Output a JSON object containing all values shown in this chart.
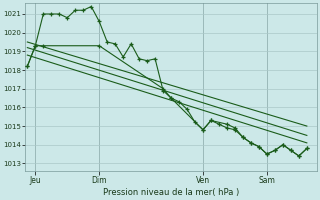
{
  "background_color": "#cce8e8",
  "grid_color": "#aac8c8",
  "line_color": "#1a5c1a",
  "title": "Pression niveau de la mer( hPa )",
  "ylabel_ticks": [
    1013,
    1014,
    1015,
    1016,
    1017,
    1018,
    1019,
    1020,
    1021
  ],
  "ylim": [
    1012.6,
    1021.6
  ],
  "xlim": [
    -0.3,
    36.3
  ],
  "day_labels": [
    "Jeu",
    "Dim",
    "Ven",
    "Sam"
  ],
  "day_positions": [
    1,
    9,
    22,
    30
  ],
  "series1_x": [
    0,
    1,
    2,
    3,
    4,
    5,
    6,
    7,
    8,
    9,
    10,
    11,
    12,
    13,
    14,
    15,
    16,
    17,
    18,
    19,
    20,
    21,
    22,
    23,
    24,
    25,
    26,
    27,
    28,
    29,
    30,
    31,
    32,
    33,
    34,
    35
  ],
  "series1_y": [
    1018.2,
    1019.3,
    1021.0,
    1021.0,
    1021.0,
    1020.8,
    1021.2,
    1021.2,
    1021.4,
    1020.6,
    1019.5,
    1019.4,
    1018.7,
    1019.4,
    1018.6,
    1018.5,
    1018.6,
    1016.9,
    1016.5,
    1016.3,
    1015.9,
    1015.2,
    1014.8,
    1015.3,
    1015.1,
    1014.9,
    1014.8,
    1014.4,
    1014.1,
    1013.9,
    1013.5,
    1013.7,
    1014.0,
    1013.7,
    1013.4,
    1013.8
  ],
  "series2_x": [
    0,
    1,
    2,
    9,
    17,
    18,
    22,
    23,
    25,
    26,
    27,
    28,
    29,
    30,
    31,
    32,
    33,
    34,
    35
  ],
  "series2_y": [
    1018.2,
    1019.3,
    1019.3,
    1019.3,
    1017.0,
    1016.5,
    1014.8,
    1015.3,
    1015.1,
    1014.9,
    1014.4,
    1014.1,
    1013.9,
    1013.5,
    1013.7,
    1014.0,
    1013.7,
    1013.4,
    1013.8
  ],
  "series3_x": [
    0,
    35
  ],
  "series3_y": [
    1018.8,
    1014.1
  ],
  "series4_x": [
    0,
    35
  ],
  "series4_y": [
    1019.2,
    1014.5
  ],
  "series5_x": [
    0,
    35
  ],
  "series5_y": [
    1019.5,
    1015.0
  ]
}
